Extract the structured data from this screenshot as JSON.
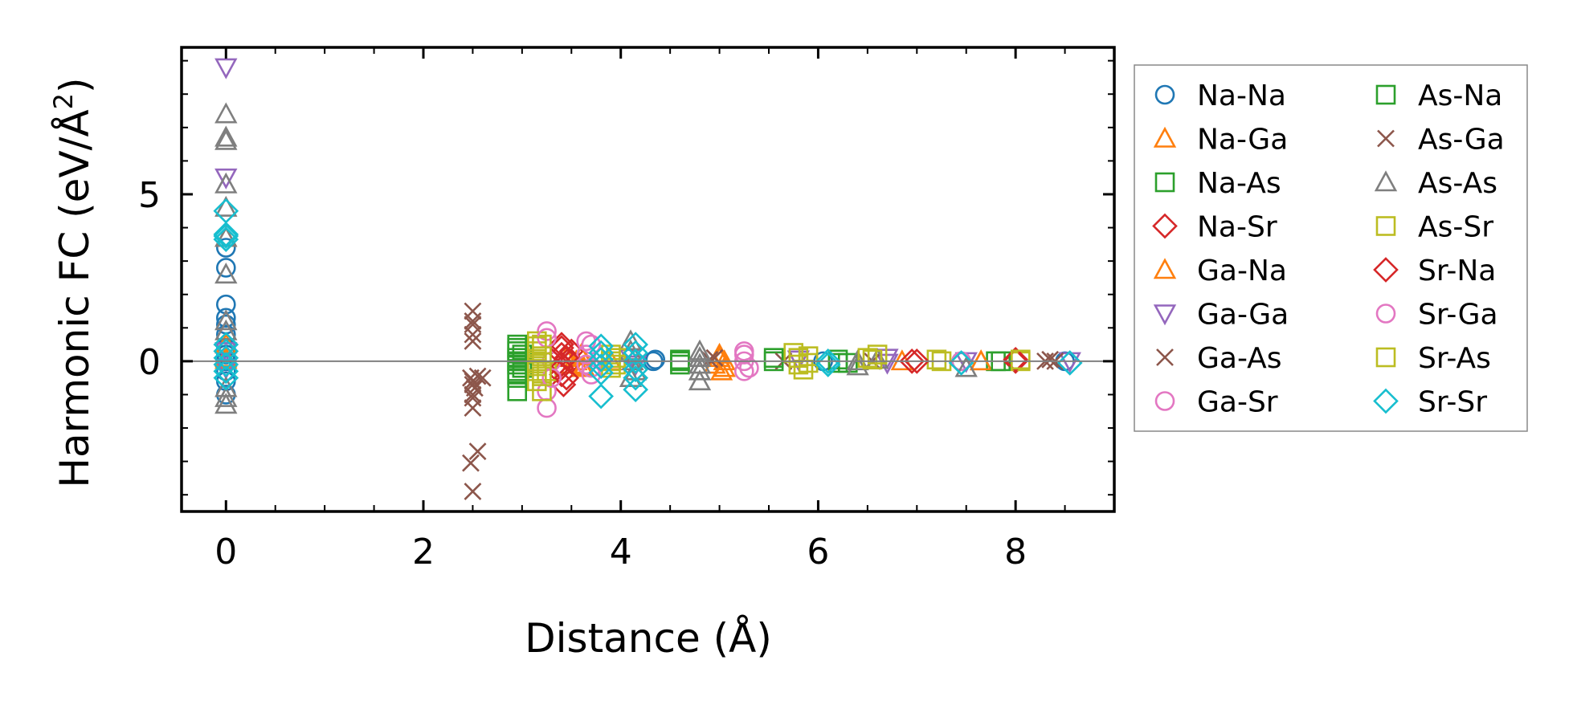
{
  "chart_data": {
    "type": "scatter",
    "title": "",
    "xlabel": "Distance (Å)",
    "ylabel_main": "Harmonic FC (eV/Å",
    "ylabel_sup": "2",
    "ylabel_close": ")",
    "xlim": [
      -0.45,
      9.0
    ],
    "ylim": [
      -4.5,
      9.4
    ],
    "xticks": [
      0,
      2,
      4,
      6,
      8
    ],
    "xtick_labels": [
      "0",
      "2",
      "4",
      "6",
      "8"
    ],
    "yticks": [
      0,
      5
    ],
    "ytick_labels": [
      "0",
      "5"
    ],
    "xminor_step": 0.5,
    "yminor_step": 1,
    "hline_y": 0,
    "grid": false,
    "legend_position": "outside-right",
    "legend_columns": 2,
    "series": [
      {
        "name": "Na-Na",
        "marker": "circle",
        "color": "#1f77b4",
        "points": [
          [
            0,
            0.0
          ],
          [
            0,
            0.2
          ],
          [
            0,
            0.4
          ],
          [
            0,
            0.8
          ],
          [
            0,
            1.1
          ],
          [
            0,
            1.3
          ],
          [
            0,
            1.7
          ],
          [
            0,
            2.8
          ],
          [
            0,
            3.4
          ],
          [
            0,
            -0.3
          ],
          [
            0,
            -0.6
          ],
          [
            0,
            -1.0
          ],
          [
            4.33,
            0.0
          ],
          [
            4.35,
            0.05
          ],
          [
            6.05,
            0.0
          ],
          [
            7.45,
            0.0
          ],
          [
            8.5,
            0.0
          ]
        ]
      },
      {
        "name": "Na-Ga",
        "marker": "triangle-up",
        "color": "#ff7f0e",
        "points": [
          [
            0,
            0.1
          ],
          [
            0,
            0.5
          ],
          [
            0,
            3.7
          ],
          [
            3.45,
            0.1
          ],
          [
            3.5,
            -0.1
          ],
          [
            3.55,
            0.0
          ],
          [
            3.6,
            0.2
          ],
          [
            3.62,
            -0.2
          ],
          [
            3.9,
            0.0
          ],
          [
            4.95,
            -0.1
          ],
          [
            5.0,
            0.1
          ],
          [
            5.02,
            -0.3
          ],
          [
            5.05,
            0.0
          ],
          [
            6.85,
            0.0
          ],
          [
            7.65,
            0.0
          ]
        ]
      },
      {
        "name": "Na-As",
        "marker": "square",
        "color": "#2ca02c",
        "points": [
          [
            2.95,
            0.5
          ],
          [
            2.95,
            0.3
          ],
          [
            2.95,
            0.1
          ],
          [
            2.95,
            -0.1
          ],
          [
            2.95,
            -0.3
          ],
          [
            2.95,
            -0.5
          ],
          [
            3.0,
            0.0
          ],
          [
            3.0,
            0.2
          ],
          [
            3.0,
            -0.2
          ],
          [
            4.6,
            0.05
          ],
          [
            4.6,
            -0.1
          ],
          [
            5.55,
            0.0
          ],
          [
            6.2,
            0.05
          ],
          [
            6.3,
            -0.05
          ],
          [
            7.8,
            0.0
          ]
        ]
      },
      {
        "name": "Na-Sr",
        "marker": "diamond",
        "color": "#d62728",
        "points": [
          [
            3.4,
            0.5
          ],
          [
            3.4,
            0.2
          ],
          [
            3.4,
            -0.1
          ],
          [
            3.4,
            -0.4
          ],
          [
            3.42,
            -0.7
          ],
          [
            3.5,
            0.3
          ],
          [
            3.5,
            0.0
          ],
          [
            6.95,
            0.0
          ],
          [
            8.0,
            0.0
          ]
        ]
      },
      {
        "name": "Ga-Na",
        "marker": "triangle-up",
        "color": "#ff7f0e",
        "points": [
          [
            0,
            0.05
          ],
          [
            3.6,
            0.15
          ],
          [
            3.62,
            -0.15
          ],
          [
            5.0,
            0.2
          ],
          [
            5.05,
            -0.2
          ],
          [
            7.65,
            0.0
          ]
        ]
      },
      {
        "name": "Ga-Ga",
        "marker": "triangle-down",
        "color": "#9467bd",
        "points": [
          [
            0,
            8.8
          ],
          [
            0,
            5.5
          ],
          [
            0,
            0.3
          ],
          [
            0,
            -0.2
          ],
          [
            4.1,
            0.1
          ],
          [
            4.15,
            -0.1
          ],
          [
            5.8,
            0.05
          ],
          [
            6.7,
            0.1
          ],
          [
            6.7,
            -0.05
          ],
          [
            7.5,
            0.0
          ],
          [
            8.55,
            0.0
          ]
        ]
      },
      {
        "name": "Ga-As",
        "marker": "x",
        "color": "#8c564b",
        "points": [
          [
            2.5,
            1.5
          ],
          [
            2.5,
            1.1
          ],
          [
            2.5,
            0.8
          ],
          [
            2.48,
            -0.5
          ],
          [
            2.5,
            -0.7
          ],
          [
            2.52,
            -0.8
          ],
          [
            2.5,
            -1.1
          ],
          [
            2.5,
            -1.4
          ],
          [
            2.48,
            -3.05
          ],
          [
            2.55,
            -2.7
          ],
          [
            2.5,
            -3.9
          ],
          [
            2.55,
            -0.45
          ],
          [
            2.6,
            -0.5
          ],
          [
            4.9,
            0.05
          ],
          [
            5.65,
            0.0
          ],
          [
            6.55,
            0.0
          ],
          [
            8.3,
            0.0
          ],
          [
            8.4,
            0.0
          ]
        ]
      },
      {
        "name": "Ga-Sr",
        "marker": "circle",
        "color": "#e377c2",
        "points": [
          [
            3.25,
            0.9
          ],
          [
            3.25,
            -0.9
          ],
          [
            3.25,
            -1.4
          ],
          [
            3.3,
            0.0
          ],
          [
            3.65,
            0.6
          ],
          [
            3.65,
            0.2
          ],
          [
            3.65,
            -0.1
          ],
          [
            3.7,
            -0.4
          ],
          [
            5.25,
            0.3
          ],
          [
            5.25,
            0.0
          ],
          [
            5.25,
            -0.3
          ],
          [
            7.45,
            0.0
          ]
        ]
      },
      {
        "name": "As-Na",
        "marker": "square",
        "color": "#2ca02c",
        "points": [
          [
            2.95,
            0.4
          ],
          [
            2.95,
            0.0
          ],
          [
            2.95,
            -0.4
          ],
          [
            2.95,
            -0.9
          ],
          [
            4.6,
            0.0
          ],
          [
            5.55,
            0.1
          ],
          [
            6.2,
            -0.05
          ],
          [
            7.85,
            0.0
          ]
        ]
      },
      {
        "name": "As-Ga",
        "marker": "x",
        "color": "#8c564b",
        "points": [
          [
            2.5,
            1.2
          ],
          [
            2.5,
            0.6
          ],
          [
            2.5,
            -0.6
          ],
          [
            2.5,
            -1.0
          ],
          [
            4.95,
            0.1
          ],
          [
            8.35,
            0.05
          ]
        ]
      },
      {
        "name": "As-As",
        "marker": "triangle-up",
        "color": "#7f7f7f",
        "points": [
          [
            0,
            7.4
          ],
          [
            0,
            6.7
          ],
          [
            0,
            6.6
          ],
          [
            0,
            5.3
          ],
          [
            0,
            4.6
          ],
          [
            0,
            3.7
          ],
          [
            0,
            2.6
          ],
          [
            0,
            1.2
          ],
          [
            0,
            0.9
          ],
          [
            0,
            -0.8
          ],
          [
            0,
            -1.1
          ],
          [
            0,
            -1.3
          ],
          [
            4.1,
            0.6
          ],
          [
            4.1,
            0.3
          ],
          [
            4.12,
            0.0
          ],
          [
            4.15,
            -0.3
          ],
          [
            4.1,
            -0.5
          ],
          [
            4.8,
            0.3
          ],
          [
            4.8,
            0.1
          ],
          [
            4.8,
            -0.1
          ],
          [
            4.8,
            -0.3
          ],
          [
            4.8,
            -0.6
          ],
          [
            6.4,
            0.0
          ],
          [
            6.4,
            -0.15
          ],
          [
            6.6,
            0.05
          ],
          [
            7.5,
            -0.2
          ]
        ]
      },
      {
        "name": "As-Sr",
        "marker": "square",
        "color": "#bcbd22",
        "points": [
          [
            3.15,
            0.6
          ],
          [
            3.15,
            0.3
          ],
          [
            3.15,
            0.0
          ],
          [
            3.15,
            -0.3
          ],
          [
            3.15,
            -0.6
          ],
          [
            3.2,
            -0.9
          ],
          [
            3.2,
            0.5
          ],
          [
            3.25,
            -0.3
          ],
          [
            3.9,
            0.2
          ],
          [
            3.9,
            0.0
          ],
          [
            3.9,
            -0.2
          ],
          [
            5.75,
            0.25
          ],
          [
            5.8,
            0.1
          ],
          [
            5.8,
            -0.1
          ],
          [
            5.85,
            -0.25
          ],
          [
            6.5,
            0.1
          ],
          [
            6.6,
            0.2
          ],
          [
            7.2,
            0.05
          ],
          [
            8.05,
            0.0
          ]
        ]
      },
      {
        "name": "Sr-Na",
        "marker": "diamond",
        "color": "#d62728",
        "points": [
          [
            3.4,
            0.4
          ],
          [
            3.4,
            -0.2
          ],
          [
            3.45,
            0.1
          ],
          [
            3.45,
            -0.5
          ],
          [
            7.0,
            0.0
          ],
          [
            8.0,
            0.05
          ]
        ]
      },
      {
        "name": "Sr-Ga",
        "marker": "circle",
        "color": "#e377c2",
        "points": [
          [
            3.25,
            0.7
          ],
          [
            3.3,
            -0.5
          ],
          [
            3.7,
            0.5
          ],
          [
            3.7,
            -0.2
          ],
          [
            5.25,
            0.2
          ],
          [
            5.3,
            -0.2
          ]
        ]
      },
      {
        "name": "Sr-As",
        "marker": "square",
        "color": "#bcbd22",
        "points": [
          [
            3.15,
            0.45
          ],
          [
            3.15,
            -0.15
          ],
          [
            3.2,
            0.15
          ],
          [
            3.2,
            -0.45
          ],
          [
            3.95,
            0.1
          ],
          [
            3.95,
            -0.1
          ],
          [
            5.9,
            0.15
          ],
          [
            5.9,
            -0.05
          ],
          [
            6.55,
            0.05
          ],
          [
            7.25,
            0.0
          ],
          [
            8.05,
            0.05
          ]
        ]
      },
      {
        "name": "Sr-Sr",
        "marker": "diamond",
        "color": "#17becf",
        "points": [
          [
            0,
            4.5
          ],
          [
            0,
            3.8
          ],
          [
            0,
            3.75
          ],
          [
            0,
            3.65
          ],
          [
            0,
            0.5
          ],
          [
            0,
            0.3
          ],
          [
            0,
            0.1
          ],
          [
            0,
            -0.1
          ],
          [
            0,
            -0.3
          ],
          [
            0,
            -0.5
          ],
          [
            3.8,
            0.45
          ],
          [
            3.8,
            0.25
          ],
          [
            3.8,
            0.05
          ],
          [
            3.8,
            -0.15
          ],
          [
            3.8,
            -0.35
          ],
          [
            3.8,
            -1.05
          ],
          [
            4.15,
            0.5
          ],
          [
            4.15,
            0.25
          ],
          [
            4.15,
            0.0
          ],
          [
            4.15,
            -0.25
          ],
          [
            4.15,
            -0.5
          ],
          [
            4.15,
            -0.85
          ],
          [
            6.1,
            0.0
          ],
          [
            6.1,
            -0.1
          ],
          [
            7.45,
            -0.05
          ],
          [
            8.55,
            -0.05
          ]
        ]
      }
    ]
  }
}
